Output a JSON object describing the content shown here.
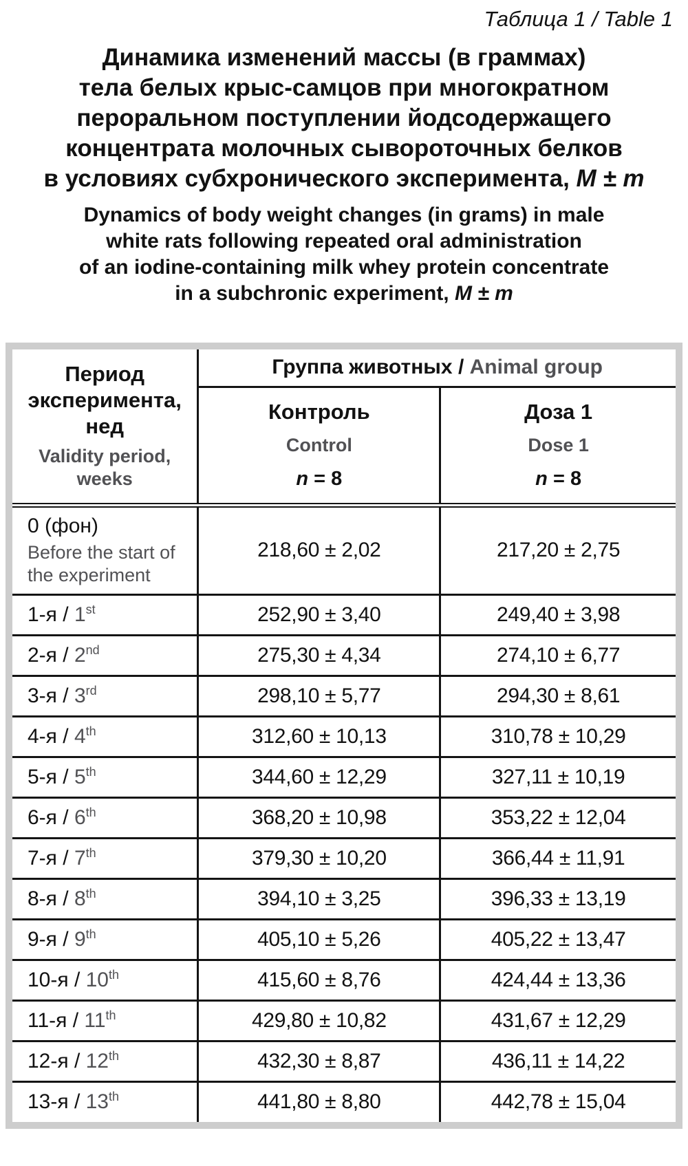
{
  "style": {
    "text_black": "#121212",
    "text_gray": "#515154",
    "frame_gray": "#cdcdcd",
    "line_black": "#141414"
  },
  "caption": {
    "text": "Таблица 1 / Table 1"
  },
  "title_ru": {
    "line1": "Динамика изменений массы (в граммах)",
    "line2": "тела белых крыс-самцов при многократном",
    "line3": "пероральном поступлении йодсодержащего",
    "line4": "концентрата молочных сывороточных белков",
    "line5_main": "в условиях субхронического эксперимента, ",
    "line5_stat": "M ± m"
  },
  "title_en": {
    "line1": "Dynamics of body weight changes (in grams) in male",
    "line2": "white rats following repeated oral administration",
    "line3": "of an iodine-containing milk whey protein concentrate",
    "line4_main": "in a subchronic experiment, ",
    "line4_stat": "M ± m"
  },
  "table": {
    "header": {
      "period_ru": "Период эксперимента, нед",
      "period_en": "Validity period, weeks",
      "group_ru": "Группа животных",
      "group_sep": " / ",
      "group_en": "Animal group",
      "columns": [
        {
          "name_ru": "Контроль",
          "name_en": "Control",
          "n_symbol": "n",
          "n_rest": " = 8"
        },
        {
          "name_ru": "Доза 1",
          "name_en": "Dose 1",
          "n_symbol": "n",
          "n_rest": " = 8"
        }
      ]
    },
    "rows": [
      {
        "label_ru": "0 (фон)",
        "ordinal": "",
        "suffix": "",
        "label_en": "Before the start of the experiment",
        "control": "218,60 ± 2,02",
        "dose1": "217,20 ± 2,75"
      },
      {
        "label_ru": "1-я / ",
        "ordinal": "1",
        "suffix": "st",
        "label_en": "",
        "control": "252,90 ± 3,40",
        "dose1": "249,40 ± 3,98"
      },
      {
        "label_ru": "2-я / ",
        "ordinal": "2",
        "suffix": "nd",
        "label_en": "",
        "control": "275,30 ± 4,34",
        "dose1": "274,10 ± 6,77"
      },
      {
        "label_ru": "3-я / ",
        "ordinal": "3",
        "suffix": "rd",
        "label_en": "",
        "control": "298,10 ± 5,77",
        "dose1": "294,30 ± 8,61"
      },
      {
        "label_ru": "4-я / ",
        "ordinal": "4",
        "suffix": "th",
        "label_en": "",
        "control": "312,60 ± 10,13",
        "dose1": "310,78 ± 10,29"
      },
      {
        "label_ru": "5-я / ",
        "ordinal": "5",
        "suffix": "th",
        "label_en": "",
        "control": "344,60 ± 12,29",
        "dose1": "327,11 ± 10,19"
      },
      {
        "label_ru": "6-я / ",
        "ordinal": "6",
        "suffix": "th",
        "label_en": "",
        "control": "368,20 ± 10,98",
        "dose1": "353,22 ± 12,04"
      },
      {
        "label_ru": "7-я / ",
        "ordinal": "7",
        "suffix": "th",
        "label_en": "",
        "control": "379,30 ± 10,20",
        "dose1": "366,44 ± 11,91"
      },
      {
        "label_ru": "8-я / ",
        "ordinal": "8",
        "suffix": "th",
        "label_en": "",
        "control": "394,10 ± 3,25",
        "dose1": "396,33 ± 13,19"
      },
      {
        "label_ru": "9-я / ",
        "ordinal": "9",
        "suffix": "th",
        "label_en": "",
        "control": "405,10 ± 5,26",
        "dose1": "405,22 ± 13,47"
      },
      {
        "label_ru": "10-я / ",
        "ordinal": "10",
        "suffix": "th",
        "label_en": "",
        "control": "415,60 ± 8,76",
        "dose1": "424,44 ± 13,36"
      },
      {
        "label_ru": "11-я / ",
        "ordinal": "11",
        "suffix": "th",
        "label_en": "",
        "control": "429,80 ± 10,82",
        "dose1": "431,67 ± 12,29"
      },
      {
        "label_ru": "12-я / ",
        "ordinal": "12",
        "suffix": "th",
        "label_en": "",
        "control": "432,30 ± 8,87",
        "dose1": "436,11 ± 14,22"
      },
      {
        "label_ru": "13-я / ",
        "ordinal": "13",
        "suffix": "th",
        "label_en": "",
        "control": "441,80 ± 8,80",
        "dose1": "442,78 ± 15,04"
      }
    ]
  }
}
